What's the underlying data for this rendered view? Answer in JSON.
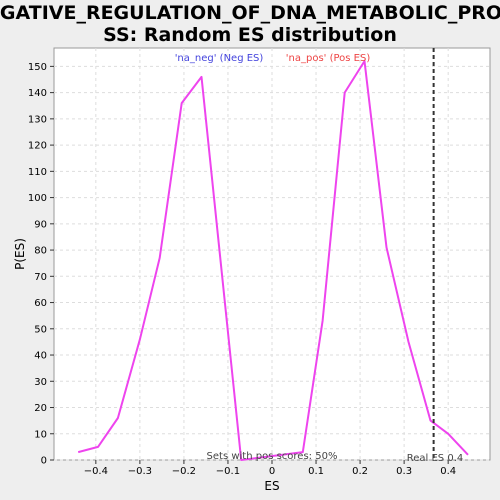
{
  "chart_data": {
    "type": "line",
    "title_line1": "NEGATIVE_REGULATION_OF_DNA_METABOLIC_PROCE",
    "title_line2": "SS: Random ES distribution",
    "xlabel": "ES",
    "ylabel": "P(ES)",
    "xlim": [
      -0.495,
      0.495
    ],
    "ylim": [
      0,
      157
    ],
    "xticks": [
      -0.4,
      -0.3,
      -0.2,
      -0.1,
      0,
      0.1,
      0.2,
      0.3,
      0.4
    ],
    "xtick_labels": [
      "−0.4",
      "−0.3",
      "−0.2",
      "−0.1",
      "0",
      "0.1",
      "0.2",
      "0.3",
      "0.4"
    ],
    "yticks": [
      0,
      10,
      20,
      30,
      40,
      50,
      60,
      70,
      80,
      90,
      100,
      110,
      120,
      130,
      140,
      150
    ],
    "grid": true,
    "series": [
      {
        "color": "#ee44ee",
        "points": [
          [
            -0.44,
            3
          ],
          [
            -0.395,
            5
          ],
          [
            -0.35,
            16
          ],
          [
            -0.3,
            46
          ],
          [
            -0.255,
            77
          ],
          [
            -0.205,
            136
          ],
          [
            -0.16,
            146
          ],
          [
            -0.07,
            0
          ],
          [
            0.07,
            3
          ],
          [
            0.115,
            53
          ],
          [
            0.165,
            140
          ],
          [
            0.21,
            152
          ],
          [
            0.26,
            81
          ],
          [
            0.31,
            45
          ],
          [
            0.36,
            15
          ],
          [
            0.4,
            10
          ],
          [
            0.445,
            2
          ]
        ]
      }
    ],
    "legend": {
      "neg_label": "'na_neg' (Neg ES)",
      "neg_color": "#4444dd",
      "pos_label": "'na_pos' (Pos ES)",
      "pos_color": "#ee4444"
    },
    "real_es": {
      "value": 0.367,
      "label": "Real ES 0.4"
    },
    "footer_note": "Sets with pos scores: 50%"
  }
}
